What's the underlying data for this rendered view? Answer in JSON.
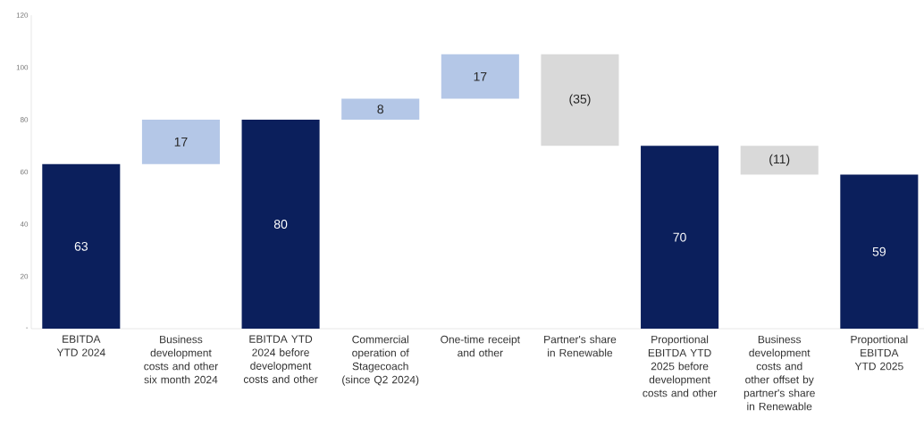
{
  "chart_data": {
    "type": "bar",
    "categories": [
      "EBITDA YTD 2024",
      "Business development costs and other six month 2024",
      "EBITDA YTD 2024 before development costs and other",
      "Commercial operation of Stagecoach (since Q2 2024)",
      "One-time receipt and other",
      "Partner's share in Renewable",
      "Proportional EBITDA YTD 2025 before development costs and other",
      "Business development costs and other offset by partner's share in Renewable",
      "Proportional EBITDA YTD 2025"
    ],
    "values": [
      63,
      17,
      80,
      8,
      17,
      -35,
      70,
      -11,
      59
    ],
    "base": [
      0,
      63,
      0,
      80,
      88,
      105,
      0,
      70,
      0
    ],
    "colors": [
      "#0b1f5c",
      "#b4c7e7",
      "#0b1f5c",
      "#b4c7e7",
      "#b4c7e7",
      "#d9d9d9",
      "#0b1f5c",
      "#d9d9d9",
      "#0b1f5c"
    ],
    "value_labels": [
      "63",
      "17",
      "80",
      "8",
      "17",
      "(35)",
      "70",
      "(11)",
      "59"
    ],
    "ylim": [
      0,
      120
    ],
    "yticks": [
      {
        "value": 0,
        "label": "-"
      },
      20,
      40,
      60,
      80,
      100,
      120
    ]
  }
}
